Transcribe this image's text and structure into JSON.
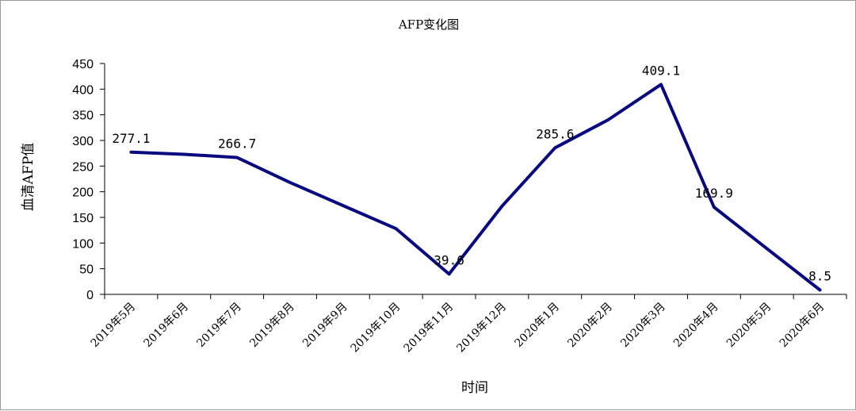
{
  "chart_data": {
    "type": "line",
    "title": "AFP变化图",
    "xlabel": "时间",
    "ylabel": "血清AFP值",
    "categories": [
      "2019年5月",
      "2019年6月",
      "2019年7月",
      "2019年8月",
      "2019年9月",
      "2019年10月",
      "2019年11月",
      "2019年12月",
      "2020年1月",
      "2020年2月",
      "2020年3月",
      "2020年4月",
      "2020年5月",
      "2020年6月"
    ],
    "series": [
      {
        "values": [
          277.1,
          273,
          266.7,
          218,
          173,
          128,
          39.6,
          172,
          285.6,
          340,
          409.1,
          169.9,
          89,
          8.5
        ],
        "data_labels": [
          "277.1",
          null,
          "266.7",
          null,
          null,
          null,
          "39.6",
          null,
          "285.6",
          null,
          "409.1",
          "169.9",
          null,
          "8.5"
        ]
      }
    ],
    "ylim": [
      0,
      450
    ],
    "yticks": [
      0,
      50,
      100,
      150,
      200,
      250,
      300,
      350,
      400,
      450
    ],
    "grid": false,
    "legend": "none",
    "colors": {
      "line": "#0a0a80",
      "axis": "#000000"
    }
  }
}
